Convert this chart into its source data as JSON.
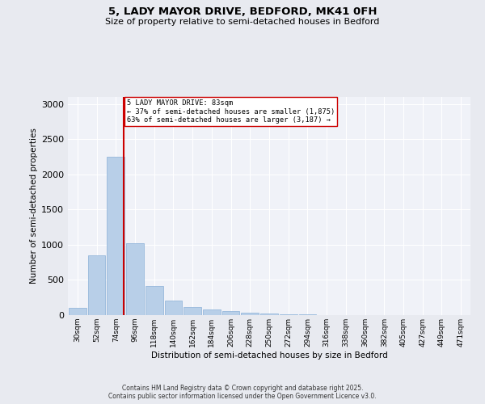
{
  "title1": "5, LADY MAYOR DRIVE, BEDFORD, MK41 0FH",
  "title2": "Size of property relative to semi-detached houses in Bedford",
  "xlabel": "Distribution of semi-detached houses by size in Bedford",
  "ylabel": "Number of semi-detached properties",
  "bar_color": "#b8cfe8",
  "bar_edgecolor": "#8ab0d8",
  "background_color": "#e8eaf0",
  "plot_bg_color": "#f0f2f8",
  "grid_color": "#ffffff",
  "categories": [
    "30sqm",
    "52sqm",
    "74sqm",
    "96sqm",
    "118sqm",
    "140sqm",
    "162sqm",
    "184sqm",
    "206sqm",
    "228sqm",
    "250sqm",
    "272sqm",
    "294sqm",
    "316sqm",
    "338sqm",
    "360sqm",
    "382sqm",
    "405sqm",
    "427sqm",
    "449sqm",
    "471sqm"
  ],
  "values": [
    100,
    850,
    2250,
    1020,
    415,
    210,
    110,
    80,
    55,
    40,
    25,
    15,
    10,
    5,
    5,
    2,
    2,
    1,
    1,
    0,
    0
  ],
  "property_size_sqm": 83,
  "property_bin_index": 2,
  "pct_smaller": 37,
  "pct_larger": 63,
  "count_smaller": 1875,
  "count_larger": 3187,
  "red_line_color": "#cc0000",
  "annotation_box_edgecolor": "#cc0000",
  "annotation_bg": "#ffffff",
  "footer_text": "Contains HM Land Registry data © Crown copyright and database right 2025.\nContains public sector information licensed under the Open Government Licence v3.0.",
  "ylim": [
    0,
    3100
  ],
  "bin_width": 22
}
